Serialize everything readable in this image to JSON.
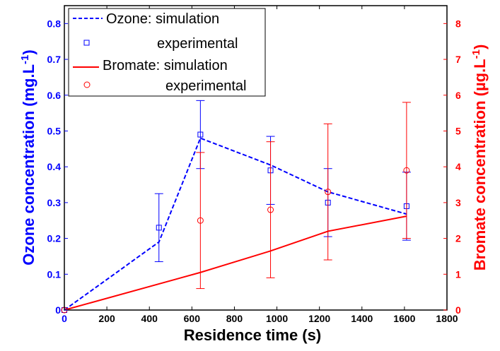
{
  "chart_data": {
    "type": "line",
    "xlabel": "Residence time (s)",
    "ylabel_left": "Ozone concentration (mg.L",
    "ylabel_left_sup": "-1",
    "ylabel_right": "Bromate concentration (µg.L",
    "ylabel_right_sup": "-1",
    "xlim": [
      0,
      1800
    ],
    "ylim_left": [
      0,
      0.85
    ],
    "ylim_right": [
      0,
      8.5
    ],
    "x_ticks": [
      "0",
      "200",
      "400",
      "600",
      "800",
      "1000",
      "1200",
      "1400",
      "1600",
      "1800"
    ],
    "y_left_ticks": [
      "0",
      "0.1",
      "0.2",
      "0.3",
      "0.4",
      "0.5",
      "0.6",
      "0.7",
      "0.8"
    ],
    "y_right_ticks": [
      "0",
      "1",
      "2",
      "3",
      "4",
      "5",
      "6",
      "7",
      "8"
    ],
    "grid": false,
    "legend_position": "top-left",
    "colors": {
      "ozone": "#0000ff",
      "bromate": "#ff0000",
      "axes": "#000000"
    },
    "series": [
      {
        "name": "Ozone: simulation",
        "axis": "left",
        "style": "dashed-line",
        "x": [
          0,
          445,
          640,
          970,
          1240,
          1610
        ],
        "y": [
          0,
          0.19,
          0.48,
          0.405,
          0.33,
          0.268
        ]
      },
      {
        "name": "experimental",
        "axis": "left",
        "style": "square-markers",
        "x": [
          0,
          445,
          640,
          970,
          1240,
          1610
        ],
        "y": [
          0,
          0.23,
          0.49,
          0.39,
          0.3,
          0.29
        ],
        "err_low": [
          0,
          0.135,
          0.395,
          0.295,
          0.205,
          0.195
        ],
        "err_high": [
          0,
          0.325,
          0.585,
          0.485,
          0.395,
          0.385
        ]
      },
      {
        "name": "Bromate: simulation",
        "axis": "right",
        "style": "solid-line",
        "x": [
          0,
          640,
          970,
          1240,
          1610
        ],
        "y": [
          0,
          1.05,
          1.65,
          2.2,
          2.62
        ]
      },
      {
        "name": "experimental",
        "axis": "right",
        "style": "circle-markers",
        "x": [
          0,
          640,
          970,
          1240,
          1610
        ],
        "y": [
          0,
          2.5,
          2.8,
          3.3,
          3.9
        ],
        "err_low": [
          0,
          0.6,
          0.9,
          1.4,
          2.0
        ],
        "err_high": [
          0,
          4.4,
          4.7,
          5.2,
          5.8
        ]
      }
    ]
  }
}
